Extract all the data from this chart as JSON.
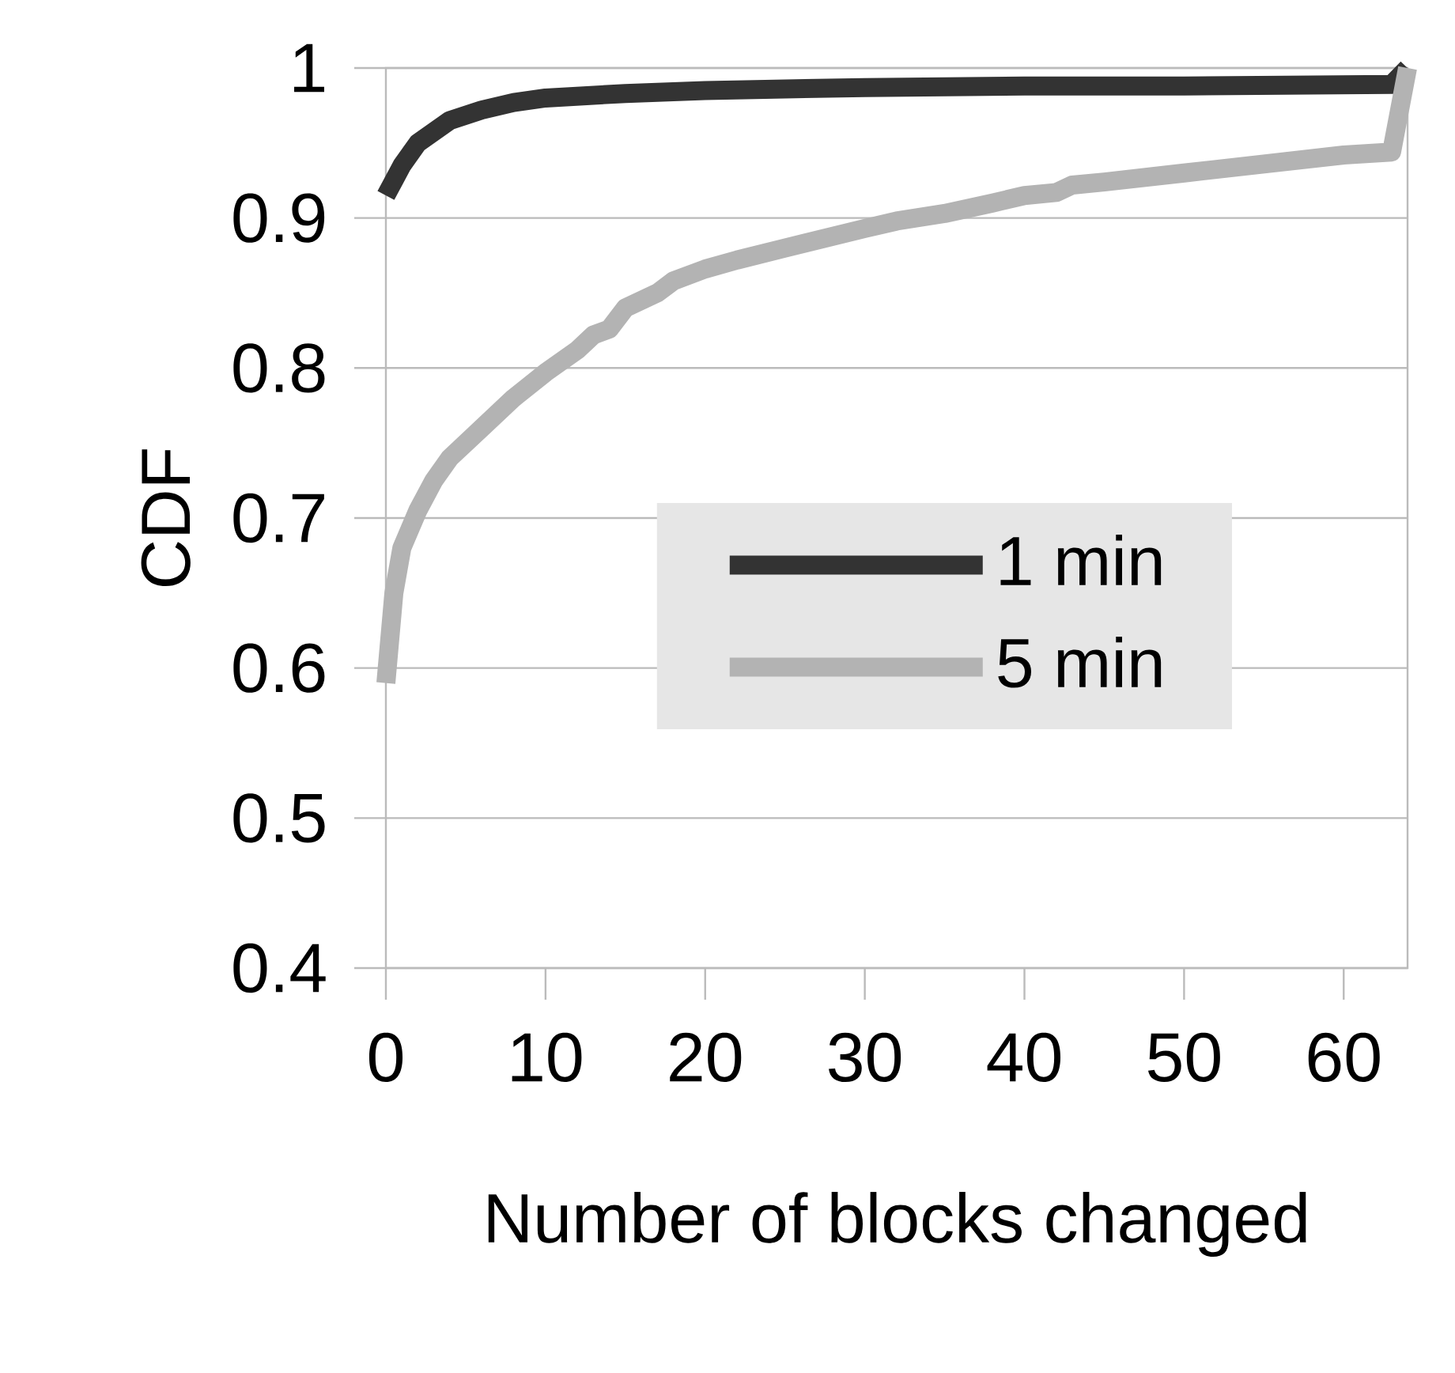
{
  "chart_data": {
    "type": "line",
    "xlabel": "Number of blocks changed",
    "ylabel": "CDF",
    "xlim": [
      0,
      64
    ],
    "xticks": [
      0,
      10,
      20,
      30,
      40,
      50,
      60
    ],
    "ylim": [
      0.4,
      1
    ],
    "yticks": [
      0.4,
      0.5,
      0.6,
      0.7,
      0.8,
      0.9,
      1
    ],
    "grid": "y",
    "legend": "right",
    "marker": "none",
    "line_style": "solid",
    "series": [
      {
        "name": "1 min",
        "color": "#333333",
        "x": [
          0,
          1,
          2,
          4,
          6,
          8,
          10,
          15,
          20,
          30,
          40,
          50,
          63,
          64
        ],
        "values": [
          0.915,
          0.935,
          0.95,
          0.965,
          0.972,
          0.977,
          0.98,
          0.983,
          0.985,
          0.987,
          0.988,
          0.988,
          0.989,
          1.0
        ]
      },
      {
        "name": "5 min",
        "color": "#b3b3b3",
        "x": [
          0,
          0.5,
          1,
          2,
          3,
          4,
          6,
          8,
          10,
          12,
          13,
          14,
          15,
          17,
          18,
          20,
          22,
          25,
          30,
          32,
          35,
          38,
          40,
          42,
          43,
          45,
          50,
          55,
          60,
          63,
          64
        ],
        "values": [
          0.59,
          0.65,
          0.68,
          0.705,
          0.725,
          0.74,
          0.76,
          0.78,
          0.797,
          0.812,
          0.822,
          0.826,
          0.84,
          0.85,
          0.858,
          0.866,
          0.872,
          0.88,
          0.893,
          0.898,
          0.903,
          0.91,
          0.915,
          0.917,
          0.922,
          0.924,
          0.93,
          0.936,
          0.942,
          0.944,
          1.0
        ]
      }
    ]
  }
}
